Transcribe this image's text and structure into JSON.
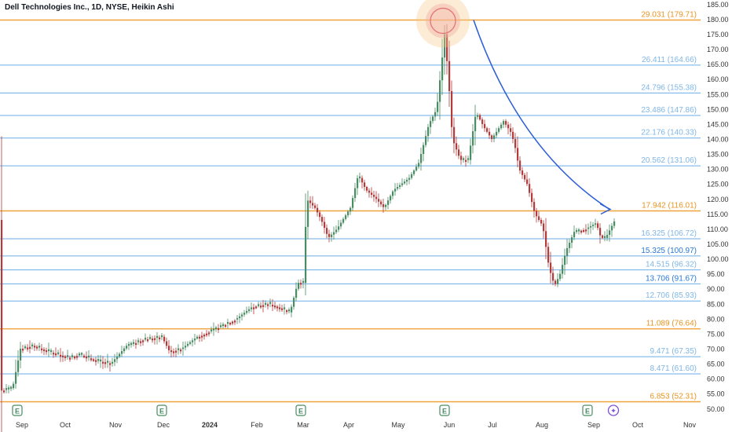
{
  "header": {
    "title": "Dell Technologies Inc., 1D, NYSE, Heikin Ashi"
  },
  "colors": {
    "up": "#4a8c63",
    "down": "#b23b3b",
    "fib_blue": "#6aaee8",
    "fib_orange": "#f0a23a",
    "arrow": "#2d5ed6",
    "label_light": "#7fb6e6",
    "label_dark": "#2a78d6",
    "label_orange": "#e89422"
  },
  "chart_data": {
    "type": "candlestick",
    "title": "Dell Technologies Inc., 1D, NYSE, Heikin Ashi",
    "y_axis": {
      "min": 47,
      "max": 186,
      "ticks": [
        50,
        55,
        60,
        65,
        70,
        75,
        80,
        85,
        90,
        95,
        100,
        105,
        110,
        115,
        120,
        125,
        130,
        135,
        140,
        145,
        150,
        155,
        160,
        165,
        170,
        175,
        180,
        185
      ],
      "tick_labels": [
        "50.00",
        "55.00",
        "60.00",
        "65.00",
        "70.00",
        "75.00",
        "80.00",
        "85.00",
        "90.00",
        "95.00",
        "100.00",
        "105.00",
        "110.00",
        "115.00",
        "120.00",
        "125.00",
        "130.00",
        "135.00",
        "140.00",
        "145.00",
        "150.00",
        "155.00",
        "160.00",
        "165.00",
        "170.00",
        "175.00",
        "180.00",
        "185.00"
      ]
    },
    "x_axis": {
      "labels": [
        "Sep",
        "Oct",
        "Nov",
        "Dec",
        "2024",
        "Feb",
        "Mar",
        "Apr",
        "May",
        "Jun",
        "Jul",
        "Aug",
        "Sep",
        "Oct",
        "Nov"
      ]
    },
    "levels": [
      {
        "label": "29.031 (179.71)",
        "price": 179.71,
        "style": "orange"
      },
      {
        "label": "26.411 (164.66)",
        "price": 164.66,
        "style": "blue_light"
      },
      {
        "label": "24.796 (155.38)",
        "price": 155.38,
        "style": "blue_light"
      },
      {
        "label": "23.486 (147.86)",
        "price": 147.86,
        "style": "blue_light"
      },
      {
        "label": "22.176 (140.33)",
        "price": 140.33,
        "style": "blue_light"
      },
      {
        "label": "20.562 (131.06)",
        "price": 131.06,
        "style": "blue_light"
      },
      {
        "label": "17.942 (116.01)",
        "price": 116.01,
        "style": "orange"
      },
      {
        "label": "16.325 (106.72)",
        "price": 106.72,
        "style": "blue_light"
      },
      {
        "label": "15.325 (100.97)",
        "price": 100.97,
        "style": "blue_dark"
      },
      {
        "label": "14.515 (96.32)",
        "price": 96.32,
        "style": "blue_light"
      },
      {
        "label": "13.706 (91.67)",
        "price": 91.67,
        "style": "blue_dark"
      },
      {
        "label": "12.706 (85.93)",
        "price": 85.93,
        "style": "blue_light"
      },
      {
        "label": "11.089 (76.64)",
        "price": 76.64,
        "style": "orange"
      },
      {
        "label": "9.471 (67.35)",
        "price": 67.35,
        "style": "blue_light"
      },
      {
        "label": "8.471 (61.60)",
        "price": 61.6,
        "style": "blue_light"
      },
      {
        "label": "6.853 (52.31)",
        "price": 52.31,
        "style": "orange"
      }
    ],
    "anchors": [
      [
        0,
        56
      ],
      [
        15,
        57
      ],
      [
        25,
        70
      ],
      [
        40,
        71
      ],
      [
        60,
        69
      ],
      [
        85,
        67
      ],
      [
        100,
        68
      ],
      [
        120,
        66
      ],
      [
        140,
        65
      ],
      [
        160,
        71
      ],
      [
        180,
        73
      ],
      [
        205,
        74
      ],
      [
        215,
        69
      ],
      [
        230,
        70
      ],
      [
        250,
        74
      ],
      [
        275,
        77
      ],
      [
        300,
        80
      ],
      [
        320,
        84
      ],
      [
        340,
        85
      ],
      [
        360,
        83
      ],
      [
        368,
        82
      ],
      [
        378,
        92
      ],
      [
        386,
        92
      ],
      [
        389,
        120
      ],
      [
        400,
        117
      ],
      [
        408,
        113
      ],
      [
        417,
        107
      ],
      [
        428,
        110
      ],
      [
        445,
        117
      ],
      [
        455,
        128
      ],
      [
        465,
        123
      ],
      [
        478,
        120
      ],
      [
        488,
        117
      ],
      [
        500,
        123
      ],
      [
        520,
        127
      ],
      [
        532,
        132
      ],
      [
        545,
        145
      ],
      [
        555,
        150
      ],
      [
        560,
        162
      ],
      [
        565,
        175
      ],
      [
        570,
        160
      ],
      [
        575,
        140
      ],
      [
        585,
        133
      ],
      [
        595,
        133
      ],
      [
        605,
        149
      ],
      [
        615,
        144
      ],
      [
        625,
        140
      ],
      [
        640,
        146
      ],
      [
        650,
        142
      ],
      [
        655,
        137
      ],
      [
        660,
        130
      ],
      [
        670,
        125
      ],
      [
        680,
        115
      ],
      [
        690,
        111
      ],
      [
        698,
        97
      ],
      [
        705,
        91
      ],
      [
        712,
        95
      ],
      [
        720,
        103
      ],
      [
        730,
        109
      ],
      [
        745,
        110
      ],
      [
        758,
        112
      ],
      [
        764,
        107
      ],
      [
        770,
        107
      ],
      [
        778,
        111
      ],
      [
        782,
        113
      ]
    ],
    "earnings_markers": [
      "E",
      "E",
      "E",
      "E",
      "E"
    ],
    "current_marker": "✦",
    "highlight_price": 179.71,
    "arrow": {
      "from_price": 179.71,
      "to_price": 116.01
    }
  }
}
